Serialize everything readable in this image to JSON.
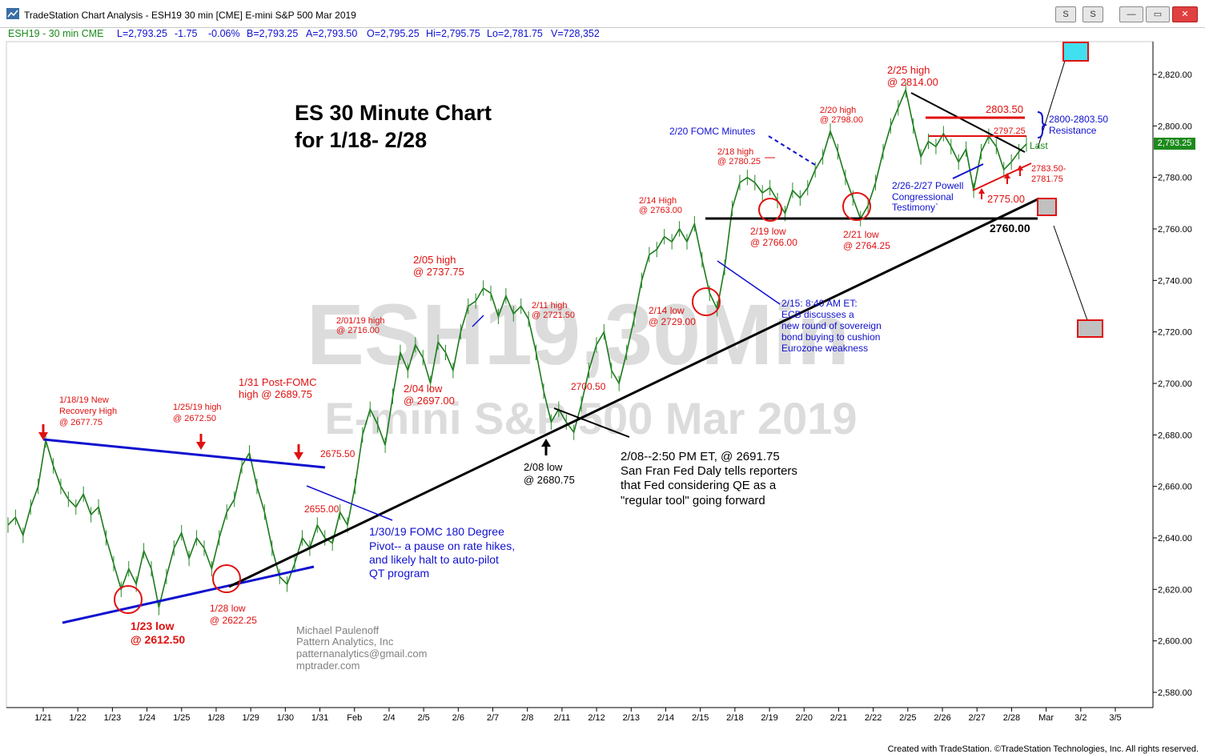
{
  "window": {
    "title": "TradeStation Chart Analysis - ESH19 30 min [CME] E-mini S&P 500 Mar 2019",
    "buttons": {
      "s_menu": "S",
      "s_menu2": "S",
      "minimize": "—",
      "maximize": "▭",
      "close": "✕"
    }
  },
  "infobar": {
    "symbol": "ESH19 - 30 min  CME",
    "last": "L=2,793.25",
    "change": "-1.75",
    "pct": "-0.06%",
    "bid": "B=2,793.25",
    "ask": "A=2,793.50",
    "open": "O=2,795.25",
    "high": "Hi=2,795.75",
    "low": "Lo=2,781.75",
    "volume": "V=728,352"
  },
  "colors": {
    "red": "#e01010",
    "blue": "#1010d0",
    "black": "#000000",
    "green": "#1c8a1c",
    "watermark": "#dcdcdc",
    "cyan": "#40e0f0"
  },
  "footer": "Created with TradeStation. ©TradeStation Technologies, Inc. All rights reserved.",
  "last_price_box": "2,793.25",
  "chart_data": {
    "type": "line",
    "title": "ES 30 Minute Chart",
    "subtitle": "for 1/18- 2/28",
    "watermark_symbol": "ESH19,30Min",
    "watermark_name": "E-mini S&P 500 Mar 2019",
    "ylim": [
      2570,
      2830
    ],
    "y_ticks": [
      "2,580.00",
      "2,600.00",
      "2,620.00",
      "2,640.00",
      "2,660.00",
      "2,680.00",
      "2,700.00",
      "2,720.00",
      "2,740.00",
      "2,760.00",
      "2,780.00",
      "2,800.00",
      "2,820.00"
    ],
    "x_ticks": [
      "1/21",
      "1/22",
      "1/23",
      "1/24",
      "1/25",
      "1/28",
      "1/29",
      "1/30",
      "1/31",
      "Feb",
      "2/4",
      "2/5",
      "2/6",
      "2/7",
      "2/8",
      "2/11",
      "2/12",
      "2/13",
      "2/14",
      "2/15",
      "2/18",
      "2/19",
      "2/20",
      "2/21",
      "2/22",
      "2/25",
      "2/26",
      "2/27",
      "2/28",
      "Mar",
      "3/2",
      "3/5"
    ],
    "series": [
      {
        "values": [
          [
            0,
            2645
          ],
          [
            1,
            2648
          ],
          [
            2,
            2641
          ],
          [
            3,
            2652
          ],
          [
            4,
            2660
          ],
          [
            5,
            2678
          ],
          [
            6,
            2668
          ],
          [
            7,
            2660
          ],
          [
            8,
            2655
          ],
          [
            9,
            2652
          ],
          [
            10,
            2657
          ],
          [
            11,
            2649
          ],
          [
            12,
            2652
          ],
          [
            13,
            2640
          ],
          [
            14,
            2630
          ],
          [
            15,
            2620
          ],
          [
            16,
            2628
          ],
          [
            17,
            2622
          ],
          [
            18,
            2635
          ],
          [
            19,
            2628
          ],
          [
            20,
            2613
          ],
          [
            21,
            2625
          ],
          [
            22,
            2636
          ],
          [
            23,
            2642
          ],
          [
            24,
            2632
          ],
          [
            25,
            2640
          ],
          [
            26,
            2636
          ],
          [
            27,
            2628
          ],
          [
            28,
            2640
          ],
          [
            29,
            2650
          ],
          [
            30,
            2655
          ],
          [
            31,
            2668
          ],
          [
            32,
            2673
          ],
          [
            33,
            2660
          ],
          [
            34,
            2650
          ],
          [
            35,
            2636
          ],
          [
            36,
            2625
          ],
          [
            37,
            2622
          ],
          [
            38,
            2630
          ],
          [
            39,
            2640
          ],
          [
            40,
            2636
          ],
          [
            41,
            2645
          ],
          [
            42,
            2640
          ],
          [
            43,
            2638
          ],
          [
            44,
            2650
          ],
          [
            45,
            2645
          ],
          [
            46,
            2660
          ],
          [
            47,
            2680
          ],
          [
            48,
            2690
          ],
          [
            49,
            2684
          ],
          [
            50,
            2676
          ],
          [
            51,
            2695
          ],
          [
            52,
            2712
          ],
          [
            53,
            2705
          ],
          [
            54,
            2715
          ],
          [
            55,
            2710
          ],
          [
            56,
            2700
          ],
          [
            57,
            2716
          ],
          [
            58,
            2712
          ],
          [
            59,
            2705
          ],
          [
            60,
            2720
          ],
          [
            61,
            2730
          ],
          [
            62,
            2732
          ],
          [
            63,
            2737
          ],
          [
            64,
            2735
          ],
          [
            65,
            2726
          ],
          [
            66,
            2734
          ],
          [
            67,
            2727
          ],
          [
            68,
            2730
          ],
          [
            69,
            2725
          ],
          [
            70,
            2712
          ],
          [
            71,
            2697
          ],
          [
            72,
            2685
          ],
          [
            73,
            2690
          ],
          [
            74,
            2685
          ],
          [
            75,
            2681
          ],
          [
            76,
            2692
          ],
          [
            77,
            2705
          ],
          [
            78,
            2715
          ],
          [
            79,
            2720
          ],
          [
            80,
            2705
          ],
          [
            81,
            2700
          ],
          [
            82,
            2712
          ],
          [
            83,
            2725
          ],
          [
            84,
            2740
          ],
          [
            85,
            2750
          ],
          [
            86,
            2752
          ],
          [
            87,
            2757
          ],
          [
            88,
            2755
          ],
          [
            89,
            2760
          ],
          [
            90,
            2755
          ],
          [
            91,
            2762
          ],
          [
            92,
            2748
          ],
          [
            93,
            2735
          ],
          [
            94,
            2729
          ],
          [
            95,
            2745
          ],
          [
            96,
            2768
          ],
          [
            97,
            2778
          ],
          [
            98,
            2780
          ],
          [
            99,
            2778
          ],
          [
            100,
            2774
          ],
          [
            101,
            2776
          ],
          [
            102,
            2771
          ],
          [
            103,
            2766
          ],
          [
            104,
            2775
          ],
          [
            105,
            2772
          ],
          [
            106,
            2776
          ],
          [
            107,
            2783
          ],
          [
            108,
            2788
          ],
          [
            109,
            2798
          ],
          [
            110,
            2790
          ],
          [
            111,
            2780
          ],
          [
            112,
            2772
          ],
          [
            113,
            2764
          ],
          [
            114,
            2769
          ],
          [
            115,
            2778
          ],
          [
            116,
            2790
          ],
          [
            117,
            2800
          ],
          [
            118,
            2807
          ],
          [
            119,
            2814
          ],
          [
            120,
            2800
          ],
          [
            121,
            2788
          ],
          [
            122,
            2794
          ],
          [
            123,
            2792
          ],
          [
            124,
            2797
          ],
          [
            125,
            2792
          ],
          [
            126,
            2786
          ],
          [
            127,
            2791
          ],
          [
            128,
            2775
          ],
          [
            129,
            2790
          ],
          [
            130,
            2796
          ],
          [
            131,
            2792
          ],
          [
            132,
            2783
          ],
          [
            133,
            2786
          ],
          [
            134,
            2790
          ],
          [
            135,
            2793
          ]
        ]
      }
    ],
    "x_range": [
      0,
      135
    ],
    "text_annotations": [
      {
        "text": "1/18/19 New",
        "color": "red"
      },
      {
        "text": "Recovery High",
        "color": "red"
      },
      {
        "text": "@ 2677.75",
        "color": "red"
      },
      {
        "text": "1/25/19 high",
        "color": "red"
      },
      {
        "text": "@ 2672.50",
        "color": "red"
      },
      {
        "text": "1/31 Post-FOMC",
        "color": "red"
      },
      {
        "text": "high @ 2689.75",
        "color": "red"
      },
      {
        "text": "2675.50",
        "color": "red"
      },
      {
        "text": "2655.00",
        "color": "red"
      },
      {
        "text": "1/23 low",
        "color": "red"
      },
      {
        "text": "@ 2612.50",
        "color": "red"
      },
      {
        "text": "1/28 low",
        "color": "red"
      },
      {
        "text": "@ 2622.25",
        "color": "red"
      },
      {
        "text": "2/01/19 high",
        "color": "red"
      },
      {
        "text": "@ 2716.00",
        "color": "red"
      },
      {
        "text": "2/05 high",
        "color": "red"
      },
      {
        "text": "@ 2737.75",
        "color": "red"
      },
      {
        "text": "2/04 low",
        "color": "red"
      },
      {
        "text": "@ 2697.00",
        "color": "red"
      },
      {
        "text": "2/11 high",
        "color": "red"
      },
      {
        "text": "@ 2721.50",
        "color": "red"
      },
      {
        "text": "2700.50",
        "color": "red"
      },
      {
        "text": "2/14 High",
        "color": "red"
      },
      {
        "text": "@ 2763.00",
        "color": "red"
      },
      {
        "text": "2/14 low",
        "color": "red"
      },
      {
        "text": "@ 2729.00",
        "color": "red"
      },
      {
        "text": "2/18 high",
        "color": "red"
      },
      {
        "text": "@ 2780.25",
        "color": "red"
      },
      {
        "text": "2/19 low",
        "color": "red"
      },
      {
        "text": "@ 2766.00",
        "color": "red"
      },
      {
        "text": "2/20 high",
        "color": "red"
      },
      {
        "text": "@ 2798.00",
        "color": "red"
      },
      {
        "text": "2/21 low",
        "color": "red"
      },
      {
        "text": "@ 2764.25",
        "color": "red"
      },
      {
        "text": "2/25 high",
        "color": "red"
      },
      {
        "text": "@ 2814.00",
        "color": "red"
      },
      {
        "text": "2803.50",
        "color": "red"
      },
      {
        "text": "2797.25",
        "color": "red"
      },
      {
        "text": "2783.50-",
        "color": "red"
      },
      {
        "text": "2781.75",
        "color": "red"
      },
      {
        "text": "2775.00",
        "color": "red"
      },
      {
        "text": "2760.00",
        "color": "black"
      },
      {
        "text": "2/08 low",
        "color": "black"
      },
      {
        "text": "@ 2680.75",
        "color": "black"
      },
      {
        "text": "2/08--2:50 PM ET, @ 2691.75",
        "color": "black"
      },
      {
        "text": "San Fran Fed Daly tells reporters",
        "color": "black"
      },
      {
        "text": "that Fed considering QE as a",
        "color": "black"
      },
      {
        "text": "\"regular tool\" going forward",
        "color": "black"
      },
      {
        "text": "1/30/19 FOMC 180 Degree",
        "color": "blue"
      },
      {
        "text": "Pivot-- a pause on rate hikes,",
        "color": "blue"
      },
      {
        "text": "and likely halt to auto-pilot",
        "color": "blue"
      },
      {
        "text": "QT program",
        "color": "blue"
      },
      {
        "text": "2/20 FOMC Minutes",
        "color": "blue"
      },
      {
        "text": "2/15: 8:40 AM ET:",
        "color": "blue"
      },
      {
        "text": "ECB discusses a",
        "color": "blue"
      },
      {
        "text": "new round of sovereign",
        "color": "blue"
      },
      {
        "text": "bond buying to cushion",
        "color": "blue"
      },
      {
        "text": "Eurozone weakness",
        "color": "blue"
      },
      {
        "text": "2/26-2/27 Powell",
        "color": "blue"
      },
      {
        "text": "Congressional",
        "color": "blue"
      },
      {
        "text": "Testimony`",
        "color": "blue"
      },
      {
        "text": "2800-2803.50",
        "color": "blue"
      },
      {
        "text": "Resistance",
        "color": "blue"
      },
      {
        "text": "Last",
        "color": "green"
      },
      {
        "text": "Michael Paulenoff",
        "color": "gray"
      },
      {
        "text": "Pattern Analytics, Inc",
        "color": "gray"
      },
      {
        "text": "patternanalytics@gmail.com",
        "color": "gray"
      },
      {
        "text": "mptrader.com",
        "color": "gray"
      }
    ]
  }
}
